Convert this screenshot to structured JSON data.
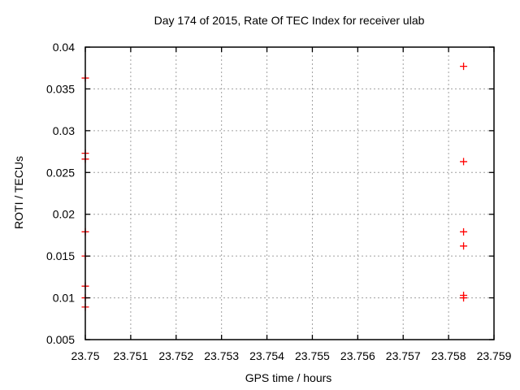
{
  "window": {
    "background": "#ffffff",
    "text_color": "#000000"
  },
  "chart_data": {
    "type": "scatter",
    "title": "Day 174 of 2015, Rate Of TEC Index for receiver ulab",
    "xlabel": "GPS time / hours",
    "ylabel": "ROTI / TECUs",
    "xlim": [
      23.75,
      23.759
    ],
    "ylim": [
      0.005,
      0.04
    ],
    "grid": true,
    "grid_style": "dashed",
    "legend_position": "none",
    "axis_color": "#000000",
    "grid_color": "#a0a0a0",
    "marker": {
      "shape": "plus",
      "color": "#ff0000",
      "size": 9
    },
    "xticks": [
      {
        "v": 23.75,
        "label": "23.75"
      },
      {
        "v": 23.751,
        "label": "23.751"
      },
      {
        "v": 23.752,
        "label": "23.752"
      },
      {
        "v": 23.753,
        "label": "23.753"
      },
      {
        "v": 23.754,
        "label": "23.754"
      },
      {
        "v": 23.755,
        "label": "23.755"
      },
      {
        "v": 23.756,
        "label": "23.756"
      },
      {
        "v": 23.757,
        "label": "23.757"
      },
      {
        "v": 23.758,
        "label": "23.758"
      },
      {
        "v": 23.759,
        "label": "23.759"
      }
    ],
    "yticks": [
      {
        "v": 0.005,
        "label": "0.005"
      },
      {
        "v": 0.01,
        "label": "0.01"
      },
      {
        "v": 0.015,
        "label": "0.015"
      },
      {
        "v": 0.02,
        "label": "0.02"
      },
      {
        "v": 0.025,
        "label": "0.025"
      },
      {
        "v": 0.03,
        "label": "0.03"
      },
      {
        "v": 0.035,
        "label": "0.035"
      },
      {
        "v": 0.04,
        "label": "0.04"
      }
    ],
    "series": [
      {
        "name": "ROTI",
        "points": [
          [
            23.75,
            0.0363
          ],
          [
            23.75,
            0.0273
          ],
          [
            23.75,
            0.0266
          ],
          [
            23.75,
            0.0179
          ],
          [
            23.75,
            0.015
          ],
          [
            23.75,
            0.0114
          ],
          [
            23.75,
            0.01
          ],
          [
            23.75,
            0.0089
          ],
          [
            23.75833,
            0.0377
          ],
          [
            23.75833,
            0.0263
          ],
          [
            23.75833,
            0.0179
          ],
          [
            23.75833,
            0.0162
          ],
          [
            23.75833,
            0.0103
          ],
          [
            23.75833,
            0.01
          ]
        ]
      }
    ]
  }
}
